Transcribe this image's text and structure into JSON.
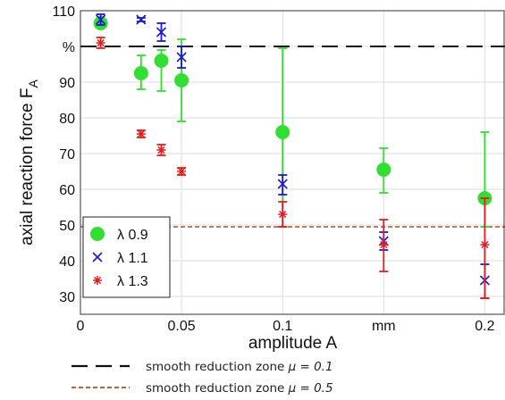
{
  "chart_data": {
    "type": "scatter",
    "xlabel": "amplitude A",
    "ylabel": "axial reaction force F",
    "ylabel_subscript": "A",
    "xlim": [
      0,
      0.21
    ],
    "ylim": [
      25,
      110
    ],
    "grid": true,
    "legend_position": "bottom-left",
    "x_ticks": [
      {
        "value": 0,
        "label": "0"
      },
      {
        "value": 0.05,
        "label": "0.05"
      },
      {
        "value": 0.1,
        "label": "0.1"
      },
      {
        "value": 0.15,
        "label": "mm"
      },
      {
        "value": 0.2,
        "label": "0.2"
      }
    ],
    "y_ticks": [
      {
        "value": 30,
        "label": "30"
      },
      {
        "value": 40,
        "label": "40"
      },
      {
        "value": 50,
        "label": "50"
      },
      {
        "value": 60,
        "label": "60"
      },
      {
        "value": 70,
        "label": "70"
      },
      {
        "value": 80,
        "label": "80"
      },
      {
        "value": 90,
        "label": "90"
      },
      {
        "value": 100,
        "label": "%"
      },
      {
        "value": 110,
        "label": "110"
      }
    ],
    "series": [
      {
        "name": "λ 0.9",
        "marker": "circle",
        "color": "#33dd33",
        "points": [
          {
            "x": 0.01,
            "y": 106.5,
            "err_low": 105.5,
            "err_high": 107.5
          },
          {
            "x": 0.03,
            "y": 92.5,
            "err_low": 88,
            "err_high": 97.5
          },
          {
            "x": 0.04,
            "y": 96,
            "err_low": 87.5,
            "err_high": 99
          },
          {
            "x": 0.05,
            "y": 90.5,
            "err_low": 79,
            "err_high": 102
          },
          {
            "x": 0.1,
            "y": 76,
            "err_low": 49.5,
            "err_high": 99.5
          },
          {
            "x": 0.15,
            "y": 65.5,
            "err_low": 59,
            "err_high": 71.5
          },
          {
            "x": 0.2,
            "y": 57.5,
            "err_low": 49.5,
            "err_high": 76
          }
        ]
      },
      {
        "name": "λ 1.1",
        "marker": "x",
        "color": "#1a1acc",
        "points": [
          {
            "x": 0.01,
            "y": 107.5,
            "err_low": 106,
            "err_high": 109
          },
          {
            "x": 0.03,
            "y": 107.5,
            "err_low": 107,
            "err_high": 108
          },
          {
            "x": 0.04,
            "y": 104,
            "err_low": 101.5,
            "err_high": 106.5
          },
          {
            "x": 0.05,
            "y": 97,
            "err_low": 94,
            "err_high": 100
          },
          {
            "x": 0.1,
            "y": 61.5,
            "err_low": 58.5,
            "err_high": 64
          },
          {
            "x": 0.15,
            "y": 45.5,
            "err_low": 43,
            "err_high": 48
          },
          {
            "x": 0.2,
            "y": 34.5,
            "err_low": 29.5,
            "err_high": 39
          }
        ]
      },
      {
        "name": "λ 1.3",
        "marker": "asterisk",
        "color": "#e02020",
        "points": [
          {
            "x": 0.01,
            "y": 101,
            "err_low": 99.5,
            "err_high": 102.5
          },
          {
            "x": 0.03,
            "y": 75.5,
            "err_low": 74.5,
            "err_high": 76.5
          },
          {
            "x": 0.04,
            "y": 71,
            "err_low": 69.5,
            "err_high": 72.5
          },
          {
            "x": 0.05,
            "y": 65,
            "err_low": 64,
            "err_high": 66
          },
          {
            "x": 0.1,
            "y": 53,
            "err_low": 49.5,
            "err_high": 56.5
          },
          {
            "x": 0.15,
            "y": 44.5,
            "err_low": 37,
            "err_high": 51.5
          },
          {
            "x": 0.2,
            "y": 44.5,
            "err_low": 29.5,
            "err_high": 57.5
          }
        ]
      }
    ],
    "reference_lines": [
      {
        "label": "smooth reduction zone",
        "mu_label": "μ = 0.1",
        "y": 100,
        "style": "dashed",
        "color": "#111111"
      },
      {
        "label": "smooth reduction zone",
        "mu_label": "μ = 0.5",
        "y": 49.5,
        "style": "dashed",
        "color": "#a0522d"
      }
    ]
  }
}
